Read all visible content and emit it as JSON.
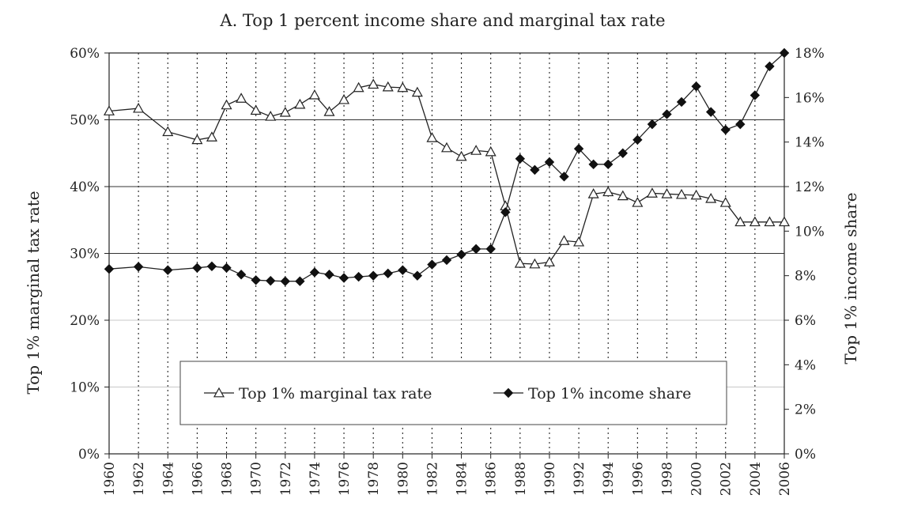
{
  "chart_data": {
    "type": "line",
    "title": "A. Top 1 percent income share and marginal tax rate",
    "ylabel_left": "Top 1% marginal tax rate",
    "ylabel_right": "Top 1% income share",
    "xlim": [
      1960,
      2006
    ],
    "ylim_left": [
      0,
      60
    ],
    "ylim_right": [
      0,
      18
    ],
    "left_ticks": [
      "0%",
      "10%",
      "20%",
      "30%",
      "40%",
      "50%",
      "60%"
    ],
    "right_ticks": [
      "0%",
      "2%",
      "4%",
      "6%",
      "8%",
      "10%",
      "12%",
      "14%",
      "16%",
      "18%"
    ],
    "x_ticks": [
      1960,
      1962,
      1964,
      1966,
      1968,
      1970,
      1972,
      1974,
      1976,
      1978,
      1980,
      1982,
      1984,
      1986,
      1988,
      1990,
      1992,
      1994,
      1996,
      1998,
      2000,
      2002,
      2004,
      2006
    ],
    "grid": "horizontal solid at 30%, 40%, 50%, 60% left axis; vertical dotted at each tick year",
    "legend_position": "bottom-center inside plot",
    "series": [
      {
        "name": "Top 1% marginal tax rate",
        "axis": "left",
        "marker": "open-triangle",
        "x": [
          1960,
          1962,
          1964,
          1966,
          1967,
          1968,
          1969,
          1970,
          1971,
          1972,
          1973,
          1974,
          1975,
          1976,
          1977,
          1978,
          1979,
          1980,
          1981,
          1982,
          1983,
          1984,
          1985,
          1986,
          1987,
          1988,
          1989,
          1990,
          1991,
          1992,
          1993,
          1994,
          1995,
          1996,
          1997,
          1998,
          1999,
          2000,
          2001,
          2002,
          2003,
          2004,
          2005,
          2006
        ],
        "y": [
          51.3,
          51.7,
          48.2,
          47.0,
          47.4,
          52.2,
          53.2,
          51.4,
          50.5,
          51.1,
          52.3,
          53.7,
          51.2,
          53.0,
          54.8,
          55.3,
          54.9,
          54.8,
          54.1,
          47.3,
          45.8,
          44.5,
          45.4,
          45.2,
          37.1,
          28.5,
          28.4,
          28.7,
          31.9,
          31.7,
          38.9,
          39.2,
          38.6,
          37.6,
          39.0,
          38.9,
          38.8,
          38.7,
          38.2,
          37.6,
          34.7,
          34.7,
          34.7,
          34.7
        ]
      },
      {
        "name": "Top 1% income share",
        "axis": "right",
        "marker": "filled-diamond",
        "x": [
          1960,
          1962,
          1964,
          1966,
          1967,
          1968,
          1969,
          1970,
          1971,
          1972,
          1973,
          1974,
          1975,
          1976,
          1977,
          1978,
          1979,
          1980,
          1981,
          1982,
          1983,
          1984,
          1985,
          1986,
          1987,
          1988,
          1989,
          1990,
          1991,
          1992,
          1993,
          1994,
          1995,
          1996,
          1997,
          1998,
          1999,
          2000,
          2001,
          2002,
          2003,
          2004,
          2005,
          2006
        ],
        "y": [
          8.3,
          8.4,
          8.25,
          8.35,
          8.42,
          8.35,
          8.05,
          7.8,
          7.77,
          7.75,
          7.75,
          8.15,
          8.05,
          7.9,
          7.95,
          8.0,
          8.1,
          8.25,
          8.0,
          8.5,
          8.7,
          8.95,
          9.2,
          9.2,
          10.85,
          13.25,
          12.75,
          13.1,
          12.45,
          13.7,
          13.0,
          13.0,
          13.5,
          14.1,
          14.8,
          15.25,
          15.8,
          16.5,
          15.35,
          14.55,
          14.8,
          16.1,
          17.4,
          18.0
        ]
      }
    ]
  }
}
